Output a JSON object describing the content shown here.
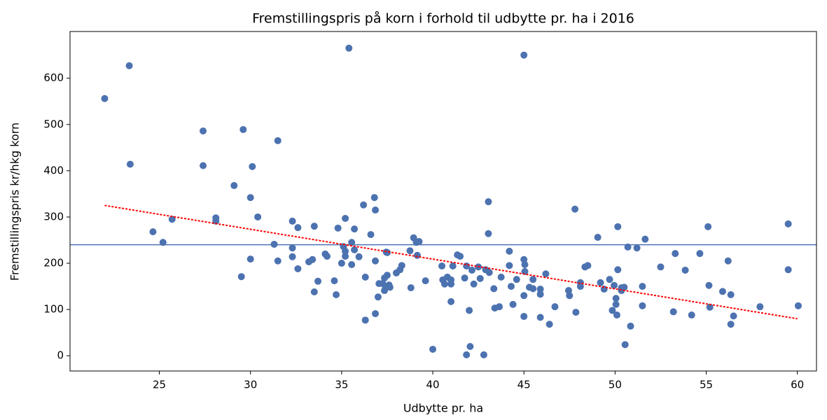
{
  "chart_data": {
    "type": "scatter",
    "title": "Fremstillingspris på korn i forhold til udbytte pr. ha i 2016",
    "x_label": "Udbytte pr. ha",
    "y_label": "Fremstillingspris kr/hkg korn",
    "xlim": [
      20.1,
      61.05
    ],
    "ylim": [
      -33,
      701
    ],
    "xticks": [
      25,
      30,
      35,
      40,
      45,
      50,
      55,
      60
    ],
    "yticks": [
      0,
      100,
      200,
      300,
      400,
      500,
      600
    ],
    "grid": false,
    "color": "#4c72b0",
    "x": [
      22.0,
      23.35,
      23.4,
      24.65,
      25.2,
      25.7,
      27.4,
      27.4,
      28.1,
      28.1,
      29.1,
      29.6,
      29.5,
      30.0,
      30.1,
      30.0,
      30.4,
      31.5,
      31.3,
      31.5,
      32.3,
      32.3,
      32.3,
      32.6,
      32.6,
      33.2,
      33.4,
      33.5,
      33.5,
      33.7,
      34.1,
      34.2,
      34.6,
      34.8,
      34.7,
      35.0,
      35.2,
      35.1,
      35.2,
      35.2,
      35.4,
      35.55,
      35.55,
      35.7,
      35.7,
      35.95,
      36.2,
      36.3,
      36.3,
      36.6,
      36.8,
      36.85,
      36.85,
      36.85,
      37.0,
      37.05,
      37.25,
      37.35,
      37.35,
      37.45,
      37.5,
      37.4,
      37.5,
      37.6,
      37.65,
      38.0,
      38.2,
      38.3,
      38.75,
      38.8,
      38.95,
      39.1,
      39.25,
      39.15,
      39.6,
      40.0,
      40.5,
      40.55,
      40.65,
      40.8,
      41.0,
      41.0,
      41.0,
      41.1,
      41.35,
      41.5,
      41.75,
      41.85,
      41.85,
      42.0,
      42.05,
      42.15,
      42.25,
      42.5,
      42.6,
      42.8,
      42.9,
      43.05,
      43.05,
      43.1,
      43.35,
      43.4,
      43.65,
      43.75,
      44.2,
      44.2,
      44.3,
      44.4,
      44.6,
      45.0,
      45.0,
      45.05,
      45.05,
      45.0,
      45.0,
      45.3,
      45.5,
      45.5,
      45.9,
      45.9,
      45.9,
      46.2,
      46.4,
      46.7,
      47.45,
      47.5,
      47.8,
      47.85,
      48.1,
      48.1,
      48.35,
      48.5,
      49.05,
      49.2,
      49.4,
      49.7,
      49.85,
      49.95,
      50.05,
      50.05,
      50.1,
      50.15,
      50.15,
      50.35,
      50.35,
      50.5,
      50.55,
      50.7,
      50.85,
      51.2,
      51.5,
      51.5,
      51.65,
      52.5,
      53.2,
      53.3,
      53.85,
      54.2,
      54.65,
      55.1,
      55.15,
      55.2,
      55.9,
      56.2,
      56.35,
      56.35,
      56.5,
      57.95,
      59.5,
      59.5,
      60.05
    ],
    "values": [
      556,
      627,
      414,
      268,
      245,
      295,
      486,
      411,
      298,
      291,
      368,
      489,
      171,
      342,
      409,
      209,
      300,
      465,
      241,
      205,
      291,
      233,
      214,
      277,
      188,
      203,
      208,
      280,
      138,
      161,
      220,
      215,
      162,
      276,
      132,
      200,
      297,
      236,
      226,
      215,
      665,
      245,
      197,
      229,
      274,
      214,
      326,
      170,
      77,
      262,
      342,
      315,
      205,
      91,
      127,
      156,
      156,
      168,
      141,
      224,
      223,
      150,
      174,
      153,
      148,
      179,
      186,
      195,
      227,
      147,
      255,
      245,
      247,
      217,
      162,
      14,
      194,
      164,
      155,
      170,
      164,
      155,
      117,
      194,
      218,
      215,
      168,
      194,
      2,
      98,
      20,
      185,
      155,
      192,
      167,
      2,
      186,
      333,
      264,
      180,
      145,
      103,
      106,
      170,
      226,
      195,
      150,
      111,
      165,
      650,
      208,
      197,
      182,
      130,
      85,
      148,
      165,
      145,
      144,
      133,
      83,
      177,
      68,
      106,
      141,
      130,
      317,
      94,
      158,
      150,
      192,
      195,
      256,
      158,
      144,
      165,
      98,
      152,
      124,
      111,
      88,
      186,
      279,
      147,
      141,
      148,
      24,
      235,
      64,
      233,
      150,
      108,
      252,
      192,
      95,
      221,
      185,
      88,
      221,
      279,
      152,
      105,
      139,
      205,
      132,
      68,
      86,
      106,
      285,
      186,
      108
    ],
    "trend": {
      "x": [
        22,
        60
      ],
      "values": [
        325,
        80
      ],
      "color": "#ff0000"
    },
    "hline": {
      "value": 240,
      "color": "#4c72b0"
    }
  }
}
